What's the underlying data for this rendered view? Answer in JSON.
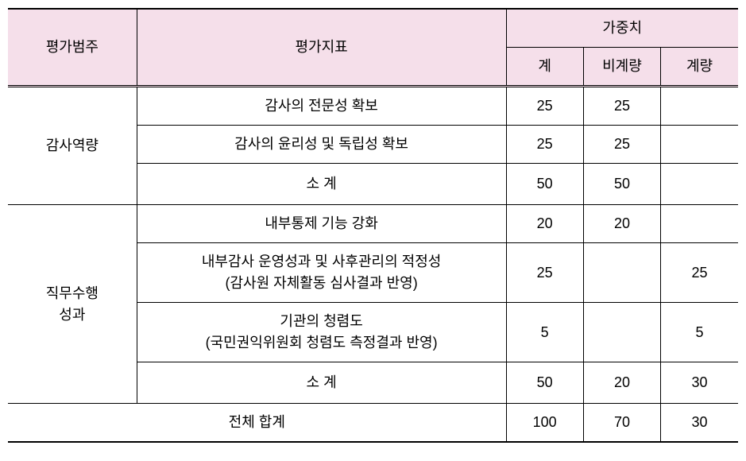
{
  "headers": {
    "category": "평가범주",
    "indicator": "평가지표",
    "weight_group": "가중치",
    "weight_total": "계",
    "weight_nonquant": "비계량",
    "weight_quant": "계량"
  },
  "sections": [
    {
      "category": "감사역량",
      "rows": [
        {
          "indicator": "감사의 전문성 확보",
          "total": "25",
          "nonquant": "25",
          "quant": ""
        },
        {
          "indicator": "감사의 윤리성 및 독립성 확보",
          "total": "25",
          "nonquant": "25",
          "quant": ""
        }
      ],
      "subtotal": {
        "label": "소  계",
        "total": "50",
        "nonquant": "50",
        "quant": ""
      }
    },
    {
      "category": "직무수행\n성과",
      "rows": [
        {
          "indicator": "내부통제 기능 강화",
          "total": "20",
          "nonquant": "20",
          "quant": ""
        },
        {
          "indicator": "내부감사 운영성과 및 사후관리의 적정성\n(감사원 자체활동 심사결과 반영)",
          "total": "25",
          "nonquant": "",
          "quant": "25"
        },
        {
          "indicator": "기관의 청렴도\n(국민권익위원회 청렴도 측정결과 반영)",
          "total": "5",
          "nonquant": "",
          "quant": "5"
        }
      ],
      "subtotal": {
        "label": "소  계",
        "total": "50",
        "nonquant": "20",
        "quant": "30"
      }
    }
  ],
  "grand_total": {
    "label": "전체 합계",
    "total": "100",
    "nonquant": "70",
    "quant": "30"
  },
  "styling": {
    "header_bg": "#f5dfea",
    "border_color": "#000000",
    "font_size": 18,
    "col_widths": {
      "category": 150,
      "indicator": 430,
      "weight": 90
    }
  }
}
